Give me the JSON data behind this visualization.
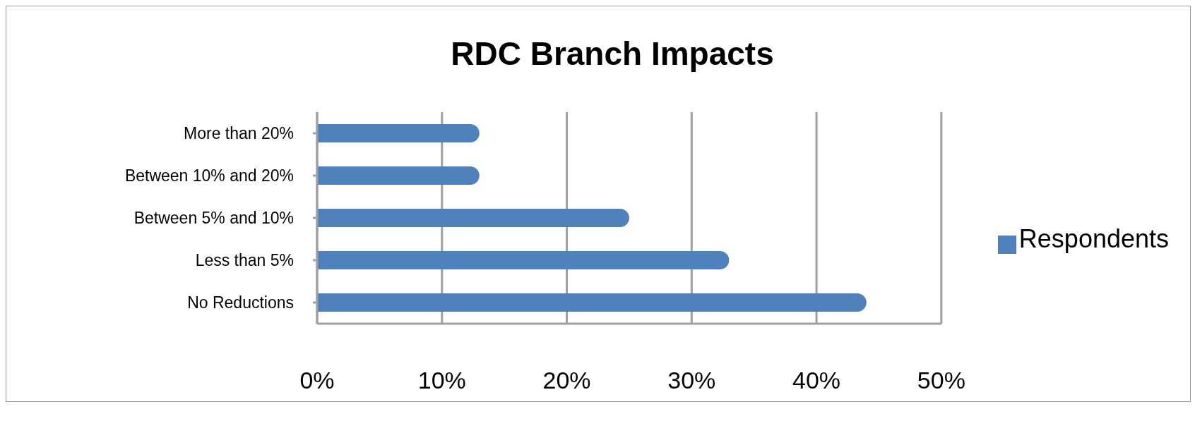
{
  "chart_data": {
    "type": "bar",
    "orientation": "horizontal",
    "title": "RDC Branch Impacts",
    "categories": [
      "More than 20%",
      "Between 10% and 20%",
      "Between 5% and 10%",
      "Less than 5%",
      "No Reductions"
    ],
    "series": [
      {
        "name": "Respondents",
        "color": "#4f81bd",
        "values": [
          13,
          13,
          25,
          33,
          44
        ]
      }
    ],
    "xlim": [
      0,
      50
    ],
    "xticks": [
      {
        "value": 0,
        "label": "0%"
      },
      {
        "value": 10,
        "label": "10%"
      },
      {
        "value": 20,
        "label": "20%"
      },
      {
        "value": 30,
        "label": "30%"
      },
      {
        "value": 40,
        "label": "40%"
      },
      {
        "value": 50,
        "label": "50%"
      }
    ],
    "grid": "x",
    "legend": "right"
  }
}
